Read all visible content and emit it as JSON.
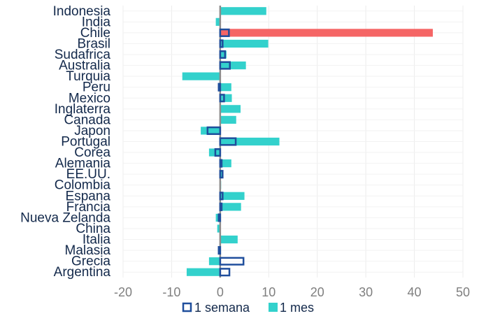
{
  "chart_data": {
    "type": "bar",
    "orientation": "horizontal",
    "categories": [
      "Indonesia",
      "India",
      "Chile",
      "Brasil",
      "Sudafrica",
      "Australia",
      "Turquia",
      "Peru",
      "Mexico",
      "Inglaterra",
      "Canada",
      "Japon",
      "Portugal",
      "Corea",
      "Alemania",
      "EE.UU.",
      "Colombia",
      "Espana",
      "Francia",
      "Nueva Zelanda",
      "China",
      "Italia",
      "Malasia",
      "Grecia",
      "Argentina"
    ],
    "series": [
      {
        "name": "1 semana",
        "style": "outline",
        "color": "#1f4e9c",
        "values": [
          0.1,
          0.1,
          1.8,
          0.5,
          1.0,
          2.0,
          0.1,
          -0.3,
          0.8,
          0.2,
          0.1,
          -2.6,
          3.2,
          -1.0,
          0.3,
          0.5,
          0.1,
          0.5,
          0.3,
          -0.3,
          0.1,
          0.1,
          -0.3,
          4.8,
          1.9
        ]
      },
      {
        "name": "1 mes",
        "style": "filled",
        "color": "#33d1cc",
        "highlight_color": "#f56565",
        "highlight_index": 2,
        "values": [
          9.5,
          -0.9,
          43.8,
          9.9,
          1.3,
          5.3,
          -7.8,
          2.3,
          2.4,
          4.2,
          3.3,
          -4.0,
          12.2,
          -2.3,
          2.3,
          0.5,
          0.2,
          5.0,
          4.3,
          -0.9,
          -0.6,
          3.6,
          -0.3,
          -2.3,
          -6.9
        ]
      }
    ],
    "xlim": [
      -20,
      50
    ],
    "xticks": [
      -20,
      -10,
      0,
      10,
      20,
      30,
      40,
      50
    ],
    "xtick_labels": [
      "-20",
      "-10",
      "0",
      "10",
      "20",
      "30",
      "40",
      "50"
    ],
    "grid": "vertical",
    "legend_position": "bottom",
    "title": "",
    "xlabel": "",
    "ylabel": ""
  }
}
